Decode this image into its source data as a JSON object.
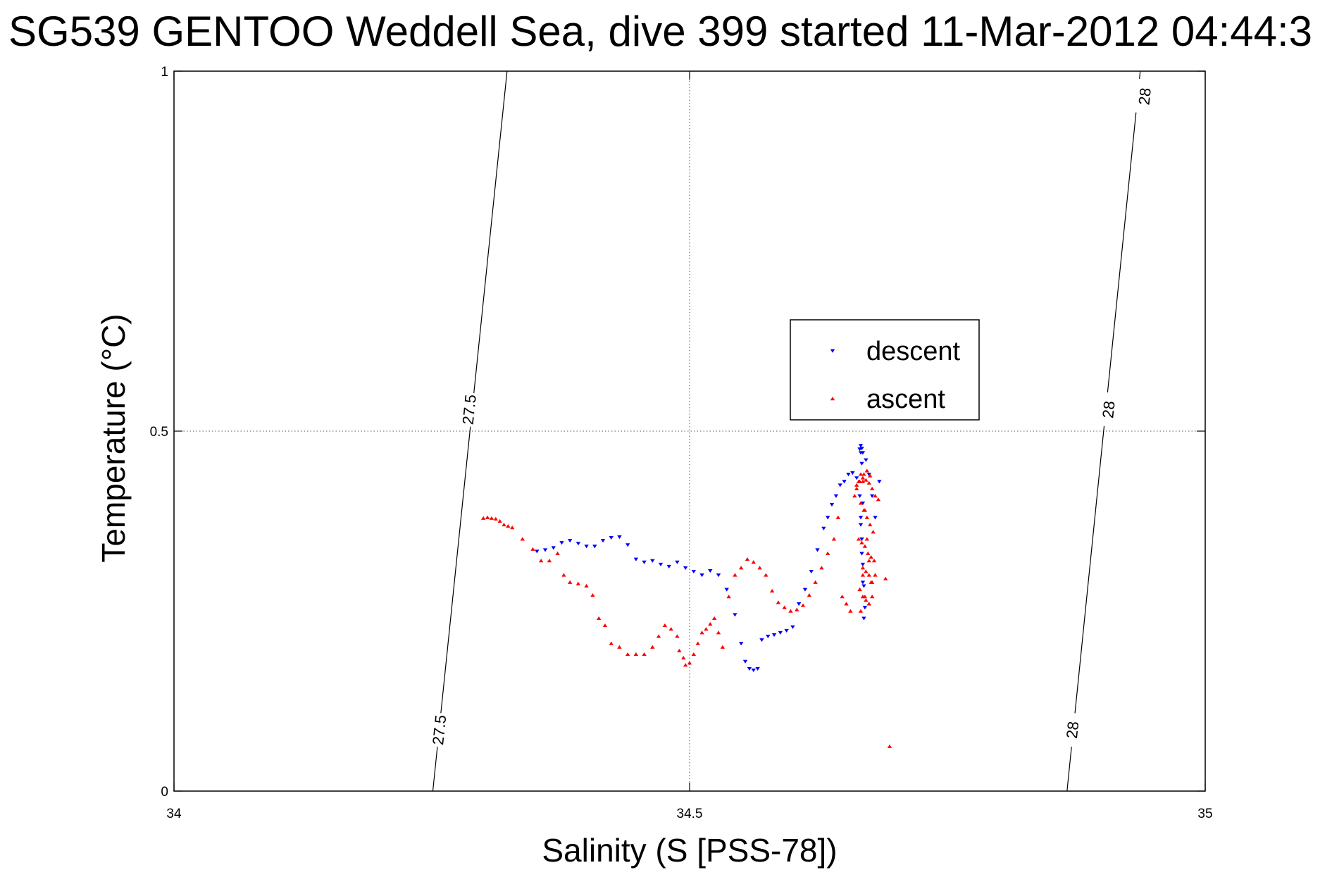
{
  "chart_data": {
    "type": "scatter",
    "title": "SG539 GENTOO Weddell Sea, dive 399 started 11-Mar-2012 04:44:3",
    "xlabel": "Salinity (S [PSS-78])",
    "ylabel": "Temperature (°C)",
    "xlim": [
      34,
      35
    ],
    "ylim": [
      0,
      1
    ],
    "xticks": [
      34,
      34.5,
      35
    ],
    "xtick_labels": [
      "34",
      "34.5",
      "35"
    ],
    "yticks": [
      0,
      0.5,
      1
    ],
    "ytick_labels": [
      "0",
      "0.5",
      "1"
    ],
    "grid": true,
    "legend": {
      "position": "center-right",
      "entries": [
        {
          "name": "descent",
          "color": "#0000ff",
          "marker": "triangle-down"
        },
        {
          "name": "ascent",
          "color": "#ff0000",
          "marker": "triangle-up"
        }
      ]
    },
    "isopycnals": [
      {
        "label": "27.5",
        "line": [
          [
            34.251,
            0
          ],
          [
            34.323,
            1
          ]
        ],
        "label_positions": [
          [
            34.257,
            0.085
          ],
          [
            34.286,
            0.53
          ]
        ]
      },
      {
        "label": "28",
        "line": [
          [
            34.866,
            0
          ],
          [
            34.937,
            1
          ]
        ],
        "label_positions": [
          [
            34.871,
            0.085
          ],
          [
            34.906,
            0.53
          ],
          [
            34.941,
            0.965
          ]
        ]
      }
    ],
    "series": [
      {
        "name": "descent",
        "color": "#0000ff",
        "marker": "triangle-down",
        "x": [
          34.352,
          34.36,
          34.368,
          34.376,
          34.384,
          34.392,
          34.4,
          34.408,
          34.416,
          34.424,
          34.432,
          34.44,
          34.448,
          34.456,
          34.464,
          34.472,
          34.48,
          34.488,
          34.496,
          34.504,
          34.512,
          34.52,
          34.528,
          34.536,
          34.544,
          34.55,
          34.554,
          34.558,
          34.562,
          34.566,
          34.57,
          34.576,
          34.582,
          34.588,
          34.594,
          34.6,
          34.606,
          34.612,
          34.618,
          34.624,
          34.63,
          34.634,
          34.638,
          34.642,
          34.646,
          34.65,
          34.654,
          34.658,
          34.662,
          34.665,
          34.666,
          34.667,
          34.668,
          34.669,
          34.67,
          34.669,
          34.668,
          34.667,
          34.666,
          34.668,
          34.667,
          34.666,
          34.665,
          34.666,
          34.667,
          34.668,
          34.671,
          34.674,
          34.677,
          34.68,
          34.684
        ],
        "y": [
          0.333,
          0.335,
          0.338,
          0.345,
          0.348,
          0.344,
          0.34,
          0.34,
          0.348,
          0.352,
          0.353,
          0.342,
          0.322,
          0.318,
          0.32,
          0.315,
          0.312,
          0.318,
          0.31,
          0.305,
          0.3,
          0.306,
          0.3,
          0.28,
          0.245,
          0.205,
          0.18,
          0.17,
          0.168,
          0.17,
          0.21,
          0.215,
          0.217,
          0.22,
          0.223,
          0.228,
          0.26,
          0.28,
          0.305,
          0.335,
          0.365,
          0.38,
          0.398,
          0.41,
          0.425,
          0.43,
          0.44,
          0.442,
          0.435,
          0.41,
          0.38,
          0.35,
          0.315,
          0.285,
          0.255,
          0.24,
          0.29,
          0.33,
          0.37,
          0.4,
          0.455,
          0.47,
          0.475,
          0.48,
          0.476,
          0.47,
          0.46,
          0.44,
          0.41,
          0.38,
          0.43
        ]
      },
      {
        "name": "ascent",
        "color": "#ff0000",
        "marker": "triangle-up",
        "x": [
          34.3,
          34.304,
          34.308,
          34.312,
          34.316,
          34.32,
          34.324,
          34.328,
          34.338,
          34.348,
          34.356,
          34.364,
          34.372,
          34.378,
          34.384,
          34.392,
          34.4,
          34.406,
          34.412,
          34.418,
          34.424,
          34.432,
          34.44,
          34.448,
          34.456,
          34.464,
          34.47,
          34.476,
          34.482,
          34.488,
          34.49,
          34.494,
          34.496,
          34.5,
          34.504,
          34.508,
          34.512,
          34.516,
          34.52,
          34.524,
          34.528,
          34.532,
          34.538,
          34.544,
          34.55,
          34.556,
          34.562,
          34.568,
          34.574,
          34.58,
          34.586,
          34.592,
          34.598,
          34.604,
          34.61,
          34.616,
          34.622,
          34.628,
          34.634,
          34.64,
          34.644,
          34.648,
          34.652,
          34.656,
          34.66,
          34.662,
          34.664,
          34.666,
          34.668,
          34.67,
          34.672,
          34.674,
          34.676,
          34.668,
          34.665,
          34.67,
          34.674,
          34.68,
          34.69,
          34.666
        ],
        "y": [
          0.379,
          0.38,
          0.379,
          0.378,
          0.375,
          0.37,
          0.368,
          0.366,
          0.35,
          0.336,
          0.32,
          0.32,
          0.33,
          0.3,
          0.29,
          0.288,
          0.285,
          0.272,
          0.24,
          0.23,
          0.205,
          0.2,
          0.19,
          0.19,
          0.19,
          0.2,
          0.215,
          0.23,
          0.225,
          0.215,
          0.195,
          0.185,
          0.175,
          0.178,
          0.19,
          0.205,
          0.22,
          0.225,
          0.232,
          0.24,
          0.22,
          0.2,
          0.27,
          0.3,
          0.31,
          0.322,
          0.318,
          0.31,
          0.3,
          0.278,
          0.262,
          0.255,
          0.25,
          0.252,
          0.258,
          0.272,
          0.29,
          0.31,
          0.33,
          0.35,
          0.38,
          0.27,
          0.26,
          0.25,
          0.41,
          0.42,
          0.43,
          0.44,
          0.43,
          0.39,
          0.35,
          0.32,
          0.29,
          0.3,
          0.28,
          0.27,
          0.26,
          0.3,
          0.295,
          0.25
        ]
      },
      {
        "name": "ascent",
        "color": "#ff0000",
        "marker": "triangle-up",
        "x": [
          34.662,
          34.665,
          34.668,
          34.671,
          34.674,
          34.677,
          34.68,
          34.683,
          34.666,
          34.669,
          34.672,
          34.675,
          34.678,
          34.664,
          34.667,
          34.67,
          34.673,
          34.676,
          34.679,
          34.668,
          34.671,
          34.674,
          34.677,
          34.665,
          34.668,
          34.671,
          34.674,
          34.677,
          34.669,
          34.672,
          34.675,
          34.694
        ],
        "y": [
          0.425,
          0.43,
          0.435,
          0.432,
          0.428,
          0.42,
          0.41,
          0.405,
          0.4,
          0.39,
          0.38,
          0.37,
          0.36,
          0.35,
          0.345,
          0.34,
          0.33,
          0.325,
          0.32,
          0.31,
          0.305,
          0.3,
          0.29,
          0.28,
          0.27,
          0.265,
          0.26,
          0.27,
          0.44,
          0.445,
          0.438,
          0.062
        ]
      }
    ]
  }
}
